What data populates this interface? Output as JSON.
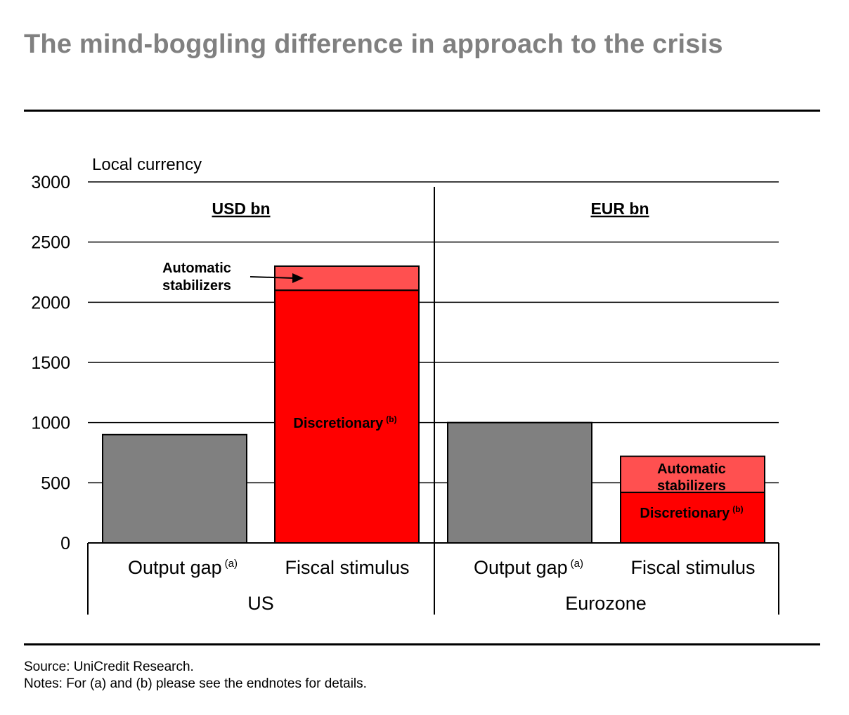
{
  "header": {
    "title": "The mind-boggling difference in approach to the crisis"
  },
  "footer": {
    "source": "Source: UniCredit Research.",
    "notes": "Notes: For (a) and (b) please see the endnotes for details."
  },
  "chart_data": {
    "type": "bar",
    "stacked": true,
    "ylabel": "Local currency",
    "ylim": [
      0,
      3000
    ],
    "yticks": [
      0,
      500,
      1000,
      1500,
      2000,
      2500,
      3000
    ],
    "grid": true,
    "panels": [
      {
        "group": "US",
        "unit": "USD bn",
        "bars": [
          {
            "category": "Output gap",
            "superscript": "(a)",
            "segments": [
              {
                "name": "Output gap",
                "value": 900,
                "color": "#808080"
              }
            ]
          },
          {
            "category": "Fiscal stimulus",
            "superscript": "",
            "segments": [
              {
                "name": "Discretionary",
                "superscript": "(b)",
                "value": 2100,
                "color": "#ff0000"
              },
              {
                "name": "Automatic stabilizers",
                "value": 200,
                "color": "#ff5050"
              }
            ]
          }
        ]
      },
      {
        "group": "Eurozone",
        "unit": "EUR bn",
        "bars": [
          {
            "category": "Output gap",
            "superscript": "(a)",
            "segments": [
              {
                "name": "Output gap",
                "value": 1000,
                "color": "#808080"
              }
            ]
          },
          {
            "category": "Fiscal stimulus",
            "superscript": "",
            "segments": [
              {
                "name": "Discretionary",
                "superscript": "(b)",
                "value": 420,
                "color": "#ff0000"
              },
              {
                "name": "Automatic stabilizers",
                "value": 300,
                "color": "#ff5050"
              }
            ]
          }
        ]
      }
    ],
    "annotations": {
      "us_automatic_line1": "Automatic",
      "us_automatic_line2": "stabilizers",
      "us_discretionary": "Discretionary",
      "ez_automatic_line1": "Automatic",
      "ez_automatic_line2": "stabilizers",
      "ez_discretionary": "Discretionary",
      "superscript_b": "(b)"
    }
  }
}
